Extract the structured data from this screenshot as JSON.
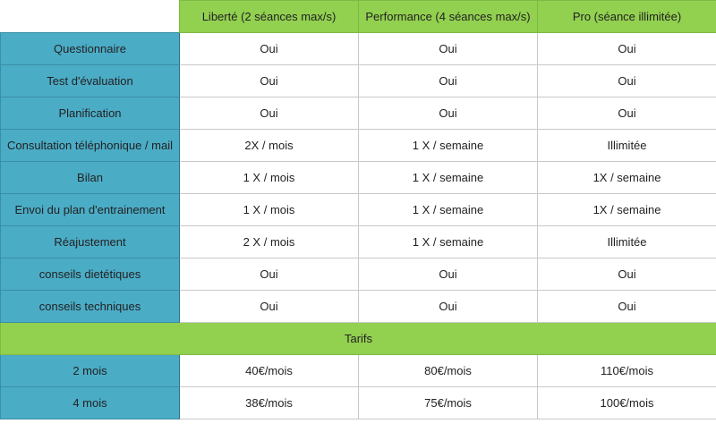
{
  "colors": {
    "label_bg": "#4BACC6",
    "header_bg": "#92D050"
  },
  "columns": [
    "Liberté (2 séances max/s)",
    "Performance (4 séances max/s)",
    "Pro (séance illimitée)"
  ],
  "features": [
    {
      "label": "Questionnaire",
      "values": [
        "Oui",
        "Oui",
        "Oui"
      ]
    },
    {
      "label": "Test d'évaluation",
      "values": [
        "Oui",
        "Oui",
        "Oui"
      ]
    },
    {
      "label": "Planification",
      "values": [
        "Oui",
        "Oui",
        "Oui"
      ]
    },
    {
      "label": "Consultation téléphonique / mail",
      "values": [
        "2X / mois",
        "1 X / semaine",
        "Illimitée"
      ]
    },
    {
      "label": "Bilan",
      "values": [
        "1 X / mois",
        "1 X / semaine",
        "1X / semaine"
      ]
    },
    {
      "label": "Envoi du plan d'entrainement",
      "values": [
        "1 X / mois",
        "1 X / semaine",
        "1X / semaine"
      ]
    },
    {
      "label": "Réajustement",
      "values": [
        "2 X / mois",
        "1 X / semaine",
        "Illimitée"
      ]
    },
    {
      "label": "conseils dietétiques",
      "values": [
        "Oui",
        "Oui",
        "Oui"
      ]
    },
    {
      "label": "conseils techniques",
      "values": [
        "Oui",
        "Oui",
        "Oui"
      ]
    }
  ],
  "tarifs_label": "Tarifs",
  "tarifs": [
    {
      "label": "2 mois",
      "values": [
        "40€/mois",
        "80€/mois",
        "110€/mois"
      ]
    },
    {
      "label": "4 mois",
      "values": [
        "38€/mois",
        "75€/mois",
        "100€/mois"
      ]
    }
  ]
}
